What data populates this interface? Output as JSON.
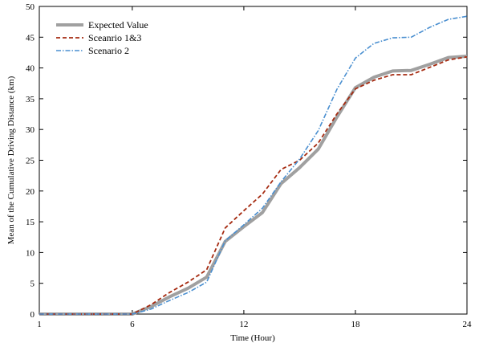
{
  "chart_data": {
    "type": "line",
    "xlabel": "Time (Hour)",
    "ylabel": "Mean of the Cumulative Driving Distance (km)",
    "xlim": [
      1,
      24
    ],
    "ylim": [
      0,
      50
    ],
    "xticks": [
      1,
      6,
      12,
      18,
      24
    ],
    "yticks": [
      0,
      5,
      10,
      15,
      20,
      25,
      30,
      35,
      40,
      45,
      50
    ],
    "grid": false,
    "legend_position": "top-left",
    "x": [
      1,
      2,
      3,
      4,
      5,
      6,
      7,
      8,
      9,
      10,
      11,
      12,
      13,
      14,
      15,
      16,
      17,
      18,
      19,
      20,
      21,
      22,
      23,
      24
    ],
    "series": [
      {
        "name": "Expected Value",
        "color": "#a0a0a0",
        "style": "solid",
        "values": [
          0,
          0,
          0,
          0,
          0,
          0,
          1.2,
          2.8,
          4.2,
          6,
          11.8,
          14.2,
          16.5,
          21.2,
          23.8,
          26.8,
          32,
          36.8,
          38.5,
          39.5,
          39.6,
          40.6,
          41.7,
          41.9
        ]
      },
      {
        "name": "Sceanrio 1&3",
        "color": "#a52a10",
        "style": "dashed",
        "values": [
          0,
          0,
          0,
          0,
          0,
          0,
          1.5,
          3.5,
          5.2,
          7.2,
          14,
          16.8,
          19.5,
          23.5,
          25,
          27.8,
          32.5,
          36.6,
          38,
          38.9,
          38.9,
          40.1,
          41.3,
          41.8
        ]
      },
      {
        "name": "Scenario 2",
        "color": "#4a8fd0",
        "style": "dashdot",
        "values": [
          0,
          0,
          0,
          0,
          0,
          0,
          0.8,
          2.2,
          3.5,
          5.2,
          11.9,
          14.5,
          17.2,
          21.5,
          25.2,
          29.8,
          36.5,
          41.6,
          44,
          44.9,
          45,
          46.6,
          47.9,
          48.4
        ]
      }
    ]
  }
}
